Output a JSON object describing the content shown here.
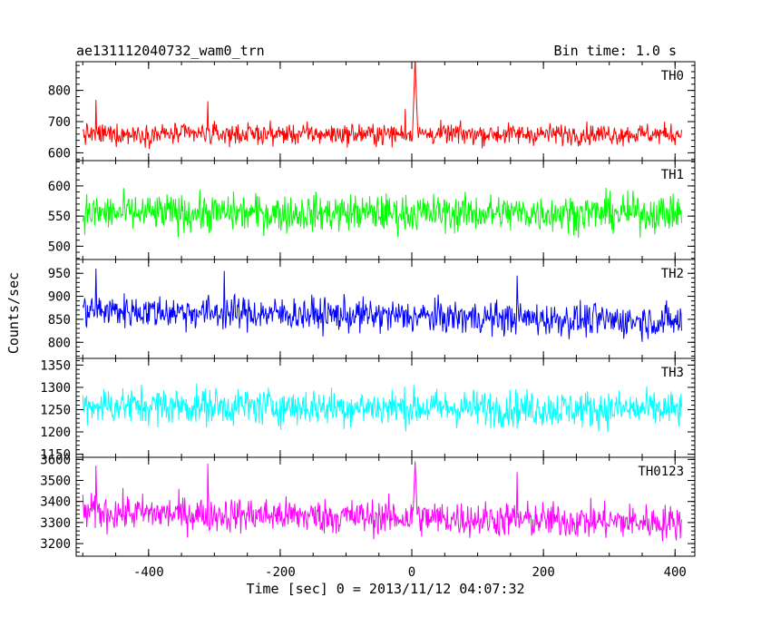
{
  "chart_data": {
    "type": "line",
    "title_left": "ae131112040732_wam0_trn",
    "title_right": "Bin time: 1.0 s",
    "xlabel": "Time [sec] 0 = 2013/11/12 04:07:32",
    "ylabel": "Counts/sec",
    "xlim": [
      -510,
      430
    ],
    "x_ticks": [
      -400,
      -200,
      0,
      200,
      400
    ],
    "x_range": [
      -500,
      410
    ],
    "x_step": 1,
    "panels": [
      {
        "name": "TH0",
        "color": "#ff0000",
        "ylim": [
          575,
          892
        ],
        "y_ticks": [
          600,
          700,
          800
        ],
        "mean": 660,
        "noise": 24,
        "trend": 0,
        "peak": {
          "x": 5,
          "value": 905,
          "width": 3
        },
        "secondary_peaks": [
          {
            "x": -480,
            "value": 770
          },
          {
            "x": -310,
            "value": 765
          },
          {
            "x": -10,
            "value": 740
          }
        ]
      },
      {
        "name": "TH1",
        "color": "#00ff00",
        "ylim": [
          478,
          642
        ],
        "y_ticks": [
          500,
          550,
          600
        ],
        "mean": 555,
        "noise": 22,
        "trend": 0,
        "peak": null,
        "secondary_peaks": []
      },
      {
        "name": "TH2",
        "color": "#0000ff",
        "ylim": [
          765,
          980
        ],
        "y_ticks": [
          800,
          850,
          900,
          950
        ],
        "mean": 870,
        "noise": 26,
        "trend": -25,
        "peak": null,
        "secondary_peaks": [
          {
            "x": -480,
            "value": 960
          },
          {
            "x": -285,
            "value": 955
          },
          {
            "x": 160,
            "value": 945
          }
        ]
      },
      {
        "name": "TH3",
        "color": "#00ffff",
        "ylim": [
          1143,
          1365
        ],
        "y_ticks": [
          1150,
          1200,
          1250,
          1300,
          1350
        ],
        "mean": 1260,
        "noise": 30,
        "trend": -10,
        "peak": null,
        "secondary_peaks": []
      },
      {
        "name": "TH0123",
        "color": "#ff00ff",
        "ylim": [
          3140,
          3610
        ],
        "y_ticks": [
          3200,
          3300,
          3400,
          3500,
          3600
        ],
        "mean": 3350,
        "noise": 60,
        "trend": -50,
        "peak": {
          "x": 5,
          "value": 3600,
          "width": 2
        },
        "secondary_peaks": [
          {
            "x": -480,
            "value": 3570
          },
          {
            "x": -310,
            "value": 3580
          },
          {
            "x": 160,
            "value": 3540
          }
        ]
      }
    ]
  }
}
